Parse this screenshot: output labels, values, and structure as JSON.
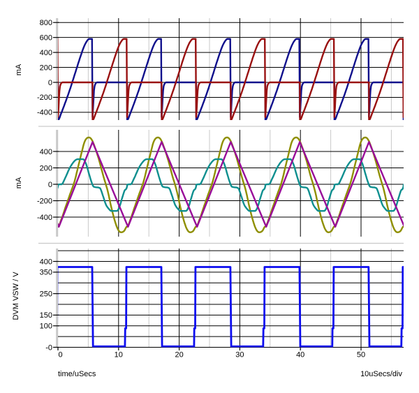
{
  "figure": {
    "background": "#FFFFFF"
  },
  "axes": {
    "x": {
      "label": "time/uSecs",
      "division_label": "10uSecs/div",
      "min": 0,
      "max": 57.0,
      "major_ticks": [
        0,
        10,
        20,
        30,
        40,
        50
      ],
      "minor_ticks": [
        5,
        15,
        25,
        35,
        45,
        55
      ]
    }
  },
  "colors": {
    "grid_major": "#000000",
    "grid_minor": "#C9C9C9",
    "axis_band": "#C9C9C9",
    "separator": "#C9C9C9",
    "text": "#000000"
  },
  "chart_data": [
    {
      "id": "top-current-plot",
      "type": "line",
      "ylabel": "mA",
      "y_gridlines": [
        800,
        600,
        400,
        200,
        0,
        -200,
        -400
      ],
      "y_tick_labels": [
        {
          "value": 800,
          "label": "800"
        },
        {
          "value": 600,
          "label": "600"
        },
        {
          "value": 400,
          "label": "400"
        },
        {
          "value": 200,
          "label": "200"
        },
        {
          "value": 0,
          "label": "0"
        },
        {
          "value": -200,
          "label": "-200"
        },
        {
          "value": -400,
          "label": "-400"
        }
      ],
      "y_visible_range": [
        -504,
        858
      ],
      "series": [
        {
          "id": "rectifier-current-blue",
          "color": "#10108C",
          "width": 2.4,
          "interp": "smooth",
          "period": 11.4,
          "t_offset": 0,
          "keypoints": {
            "t": [
              0,
              0.5,
              1.0,
              1.95,
              2.9,
              3.9,
              4.45,
              4.85,
              5.15,
              5.62,
              5.7,
              5.8,
              5.95,
              6.2,
              6.5,
              11.4
            ],
            "v": [
              -505,
              -420,
              -315,
              -100,
              140,
              390,
              505,
              560,
              580,
              580,
              -465,
              -340,
              -110,
              -18,
              0,
              0
            ]
          }
        },
        {
          "id": "rectifier-current-red",
          "color": "#991111",
          "width": 2.4,
          "interp": "smooth",
          "period": 11.4,
          "t_offset": 5.7,
          "keypoints": {
            "t": [
              0,
              0.5,
              1.0,
              1.95,
              2.9,
              3.9,
              4.45,
              4.85,
              5.15,
              5.62,
              5.7,
              5.8,
              5.95,
              6.2,
              6.5,
              11.4
            ],
            "v": [
              -505,
              -420,
              -315,
              -100,
              140,
              390,
              505,
              560,
              580,
              580,
              -465,
              -340,
              -110,
              -18,
              0,
              0
            ]
          }
        }
      ]
    },
    {
      "id": "middle-current-plot",
      "type": "line",
      "ylabel": "mA",
      "y_gridlines": [
        400,
        200,
        0,
        -200,
        -400
      ],
      "y_tick_labels": [
        {
          "value": 400,
          "label": "400"
        },
        {
          "value": 200,
          "label": "200"
        },
        {
          "value": 0,
          "label": "0"
        },
        {
          "value": -200,
          "label": "-200"
        },
        {
          "value": -400,
          "label": "-400"
        }
      ],
      "y_visible_range": [
        -638,
        663
      ],
      "series": [
        {
          "id": "resonant-current-olive",
          "color": "#8F8F00",
          "width": 2.4,
          "interp": "smooth",
          "period": 11.4,
          "t_offset": 0,
          "keypoints": {
            "t": [
              0,
              0.5,
              1.15,
              1.95,
              2.75,
              3.35,
              3.95,
              4.35,
              4.75,
              5.15,
              5.6,
              6.1,
              6.8,
              7.45,
              8.2,
              8.8,
              9.4,
              9.9,
              10.4,
              10.9,
              11.4
            ],
            "v": [
              -515,
              -440,
              -300,
              -130,
              40,
              220,
              400,
              510,
              560,
              570,
              540,
              450,
              290,
              110,
              -80,
              -280,
              -450,
              -550,
              -585,
              -570,
              -515
            ]
          }
        },
        {
          "id": "output-current-teal",
          "color": "#0E8F8F",
          "width": 2.4,
          "interp": "smooth",
          "period": 11.4,
          "t_offset": 0,
          "keypoints": {
            "t": [
              0,
              0.6,
              1.15,
              1.95,
              2.75,
              3.25,
              4.15,
              4.65,
              5.15,
              5.55,
              5.9,
              6.9,
              7.4,
              7.9,
              8.4,
              8.8,
              9.7,
              10.1,
              10.6,
              11.05,
              11.4
            ],
            "v": [
              -5,
              0,
              70,
              200,
              285,
              305,
              305,
              245,
              120,
              25,
              -30,
              -45,
              -135,
              -245,
              -300,
              -325,
              -325,
              -285,
              -165,
              -70,
              -25
            ]
          }
        },
        {
          "id": "magnetizing-current-purple",
          "color": "#990D99",
          "width": 2.4,
          "interp": "linear",
          "period": 11.4,
          "t_offset": 0,
          "keypoints": {
            "t": [
              0,
              0.15,
              5.7,
              11.4
            ],
            "v": [
              -492,
              -518,
              515,
              -492
            ]
          }
        }
      ]
    },
    {
      "id": "switch-node-voltage-plot",
      "type": "line",
      "ylabel": "DVM VSW / V",
      "y_gridlines": [
        450,
        400,
        350,
        300,
        250,
        200,
        150,
        100,
        50,
        0
      ],
      "y_tick_labels": [
        {
          "value": 400,
          "label": "400"
        },
        {
          "value": 350,
          "label": "350"
        },
        {
          "value": 250,
          "label": "250"
        },
        {
          "value": 150,
          "label": "150"
        },
        {
          "value": 100,
          "label": "100"
        },
        {
          "value": 0,
          "label": "-0"
        }
      ],
      "y_visible_range": [
        0,
        460
      ],
      "series": [
        {
          "id": "switch-voltage-blue",
          "color": "#0D0DEF",
          "width": 2.8,
          "interp": "linear",
          "period": 11.4,
          "t_offset": 0,
          "keypoints": {
            "t": [
              0,
              5.65,
              5.78,
              11.05,
              11.09,
              11.24,
              11.29,
              11.4
            ],
            "v": [
              374,
              374,
              4,
              4,
              88,
              88,
              374,
              374
            ]
          }
        }
      ]
    }
  ]
}
